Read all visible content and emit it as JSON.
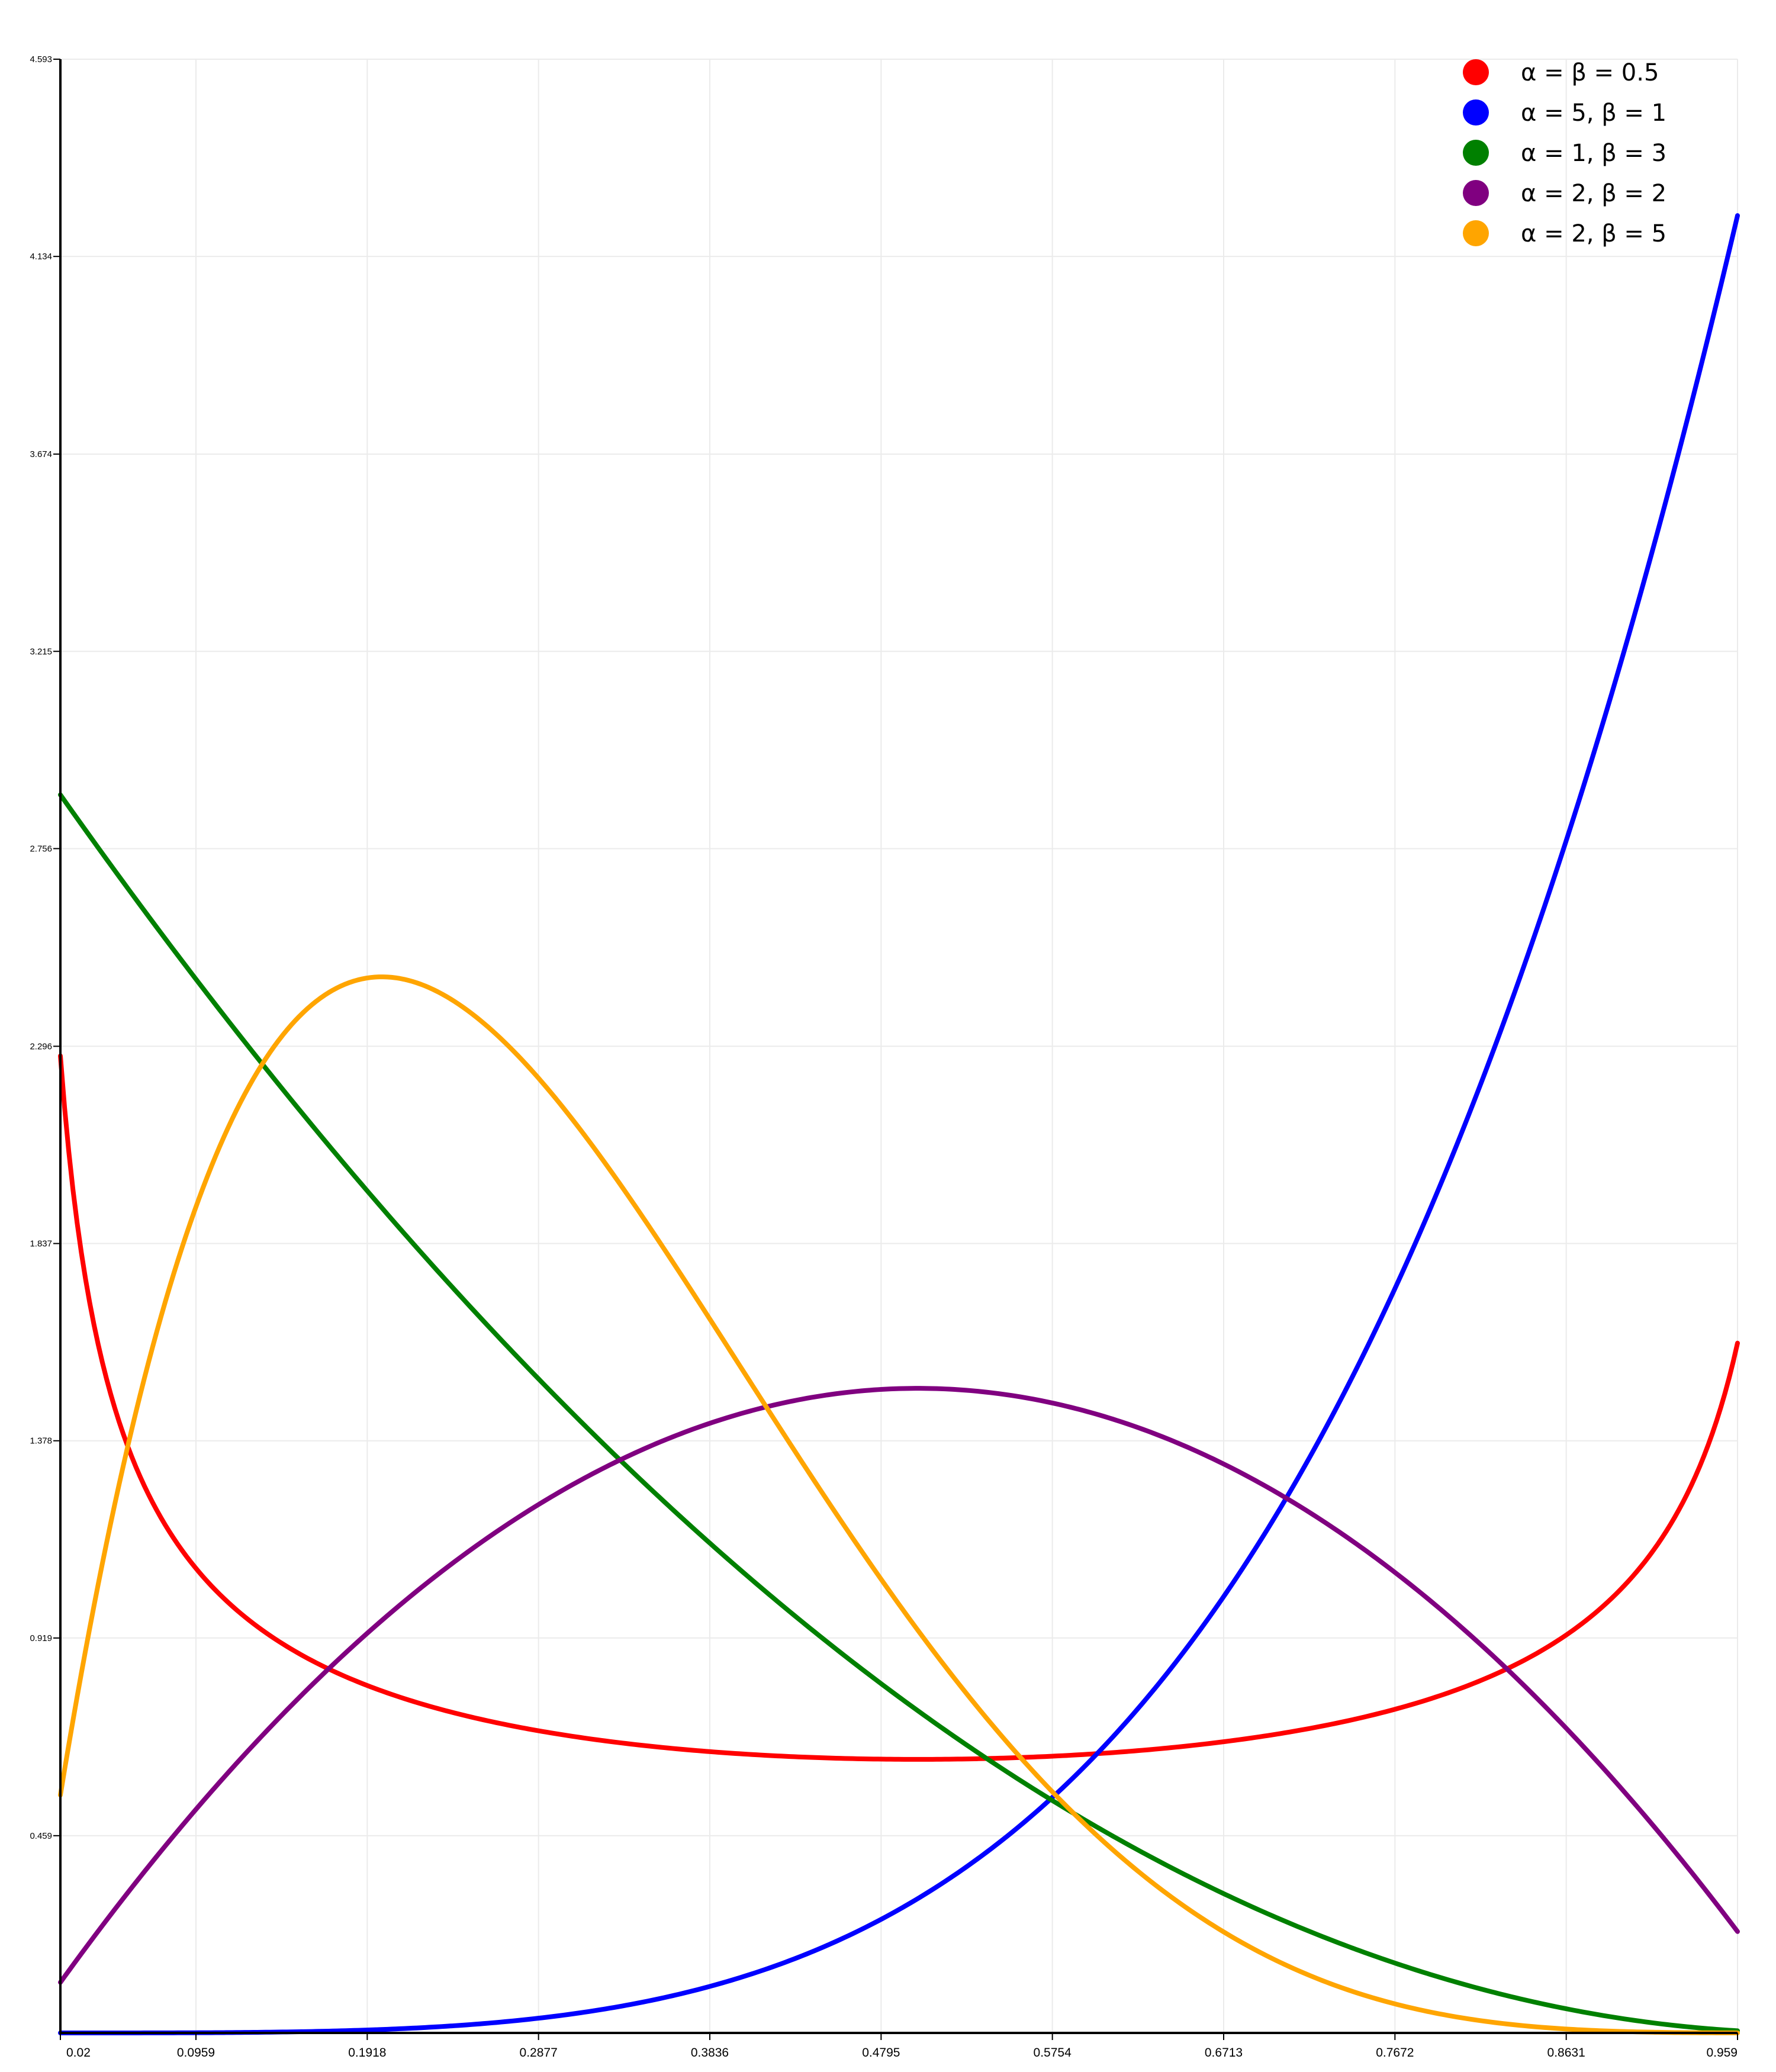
{
  "chart_data": {
    "type": "line",
    "title": "",
    "xlabel": "",
    "ylabel": "",
    "xlim": [
      0.02,
      0.959
    ],
    "ylim": [
      0,
      4.593
    ],
    "grid": true,
    "legend_position": "top-right",
    "x_ticks": [
      "0.02",
      "0.0959",
      "0.1918",
      "0.2877",
      "0.3836",
      "0.4795",
      "0.5754",
      "0.6713",
      "0.7672",
      "0.8631",
      "0.959"
    ],
    "y_ticks": [
      "4.593",
      "4.134",
      "3.674",
      "3.215",
      "2.756",
      "2.296",
      "1.837",
      "1.378",
      "0.919",
      "0.459"
    ],
    "series": [
      {
        "name": "α = β = 0.5",
        "color": "#ff0000",
        "alpha": 0.5,
        "beta": 0.5,
        "x": [
          0.02,
          0.05,
          0.1,
          0.15,
          0.2,
          0.25,
          0.3,
          0.35,
          0.4,
          0.45,
          0.5,
          0.55,
          0.6,
          0.65,
          0.7,
          0.75,
          0.8,
          0.85,
          0.9,
          0.95,
          0.959
        ],
        "y": [
          2.274,
          1.46,
          1.061,
          0.891,
          0.796,
          0.735,
          0.695,
          0.667,
          0.65,
          0.64,
          0.637,
          0.64,
          0.65,
          0.667,
          0.695,
          0.735,
          0.796,
          0.891,
          1.061,
          1.46,
          1.598
        ]
      },
      {
        "name": "α = 5, β = 1",
        "color": "#0000ff",
        "alpha": 5,
        "beta": 1,
        "x": [
          0.02,
          0.1,
          0.2,
          0.3,
          0.4,
          0.5,
          0.6,
          0.7,
          0.8,
          0.9,
          0.959
        ],
        "y": [
          0.0,
          0.001,
          0.008,
          0.041,
          0.128,
          0.313,
          0.648,
          1.201,
          2.048,
          3.281,
          4.593
        ]
      },
      {
        "name": "α = 1, β = 3",
        "color": "#008000",
        "alpha": 1,
        "beta": 3,
        "x": [
          0.02,
          0.1,
          0.2,
          0.3,
          0.4,
          0.5,
          0.6,
          0.7,
          0.8,
          0.9,
          0.959
        ],
        "y": [
          2.881,
          2.43,
          1.92,
          1.47,
          1.08,
          0.75,
          0.48,
          0.27,
          0.12,
          0.03,
          0.005
        ]
      },
      {
        "name": "α = 2, β = 2",
        "color": "#800080",
        "alpha": 2,
        "beta": 2,
        "x": [
          0.02,
          0.1,
          0.2,
          0.3,
          0.4,
          0.5,
          0.6,
          0.7,
          0.8,
          0.9,
          0.959
        ],
        "y": [
          0.118,
          0.54,
          0.96,
          1.26,
          1.44,
          1.5,
          1.44,
          1.26,
          0.96,
          0.54,
          0.236
        ]
      },
      {
        "name": "α = 2, β = 5",
        "color": "#ffa500",
        "alpha": 2,
        "beta": 5,
        "x": [
          0.02,
          0.1,
          0.2,
          0.3,
          0.4,
          0.5,
          0.6,
          0.7,
          0.8,
          0.9,
          0.959
        ],
        "y": [
          0.553,
          1.968,
          2.458,
          2.161,
          1.555,
          0.938,
          0.461,
          0.17,
          0.038,
          0.003,
          0.0
        ]
      }
    ]
  }
}
